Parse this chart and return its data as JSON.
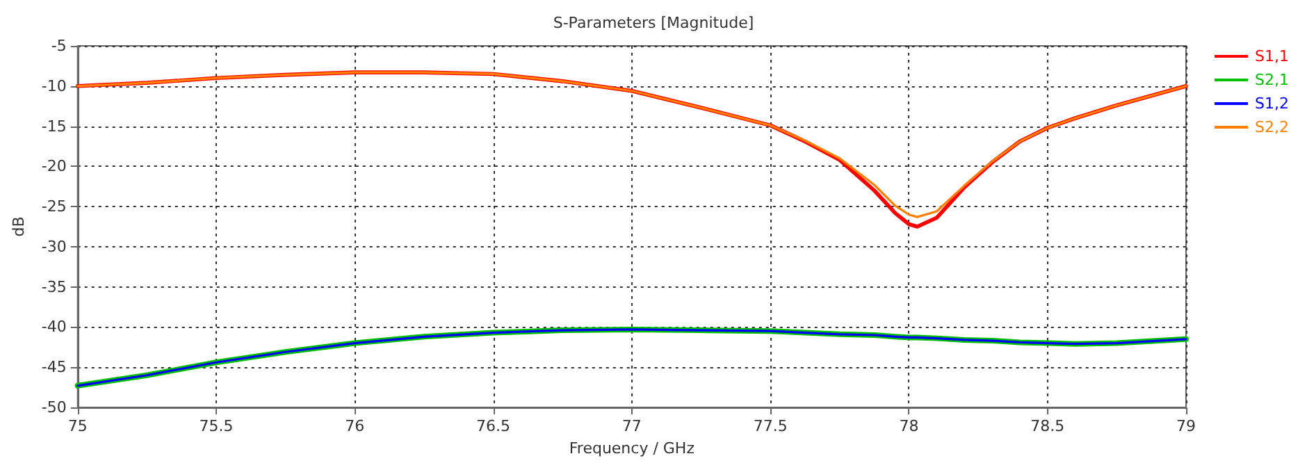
{
  "chart_data": {
    "type": "line",
    "title": "S-Parameters [Magnitude]",
    "xlabel": "Frequency / GHz",
    "ylabel": "dB",
    "x": [
      75,
      75.25,
      75.5,
      75.75,
      76,
      76.25,
      76.5,
      76.75,
      77,
      77.25,
      77.5,
      77.625,
      77.75,
      77.875,
      77.95,
      78,
      78.03,
      78.1,
      78.2,
      78.3,
      78.4,
      78.5,
      78.6,
      78.75,
      79
    ],
    "series": [
      {
        "name": "S1,1",
        "color": "#ff0000",
        "values": [
          -10.0,
          -9.6,
          -9.0,
          -8.6,
          -8.3,
          -8.3,
          -8.5,
          -9.4,
          -10.6,
          -12.7,
          -14.9,
          -16.9,
          -19.2,
          -23.0,
          -25.8,
          -27.2,
          -27.5,
          -26.4,
          -22.6,
          -19.5,
          -16.9,
          -15.2,
          -14.0,
          -12.4,
          -10.0
        ]
      },
      {
        "name": "S2,1",
        "color": "#00c000",
        "values": [
          -47.3,
          -46.0,
          -44.4,
          -43.1,
          -42.0,
          -41.2,
          -40.7,
          -40.4,
          -40.3,
          -40.4,
          -40.5,
          -40.7,
          -40.9,
          -41.0,
          -41.2,
          -41.3,
          -41.3,
          -41.4,
          -41.6,
          -41.7,
          -41.9,
          -42.0,
          -42.1,
          -42.0,
          -41.5
        ]
      },
      {
        "name": "S1,2",
        "color": "#0000ff",
        "values": [
          -47.3,
          -46.0,
          -44.4,
          -43.1,
          -42.0,
          -41.2,
          -40.7,
          -40.4,
          -40.3,
          -40.4,
          -40.5,
          -40.7,
          -40.9,
          -41.0,
          -41.2,
          -41.3,
          -41.3,
          -41.4,
          -41.6,
          -41.7,
          -41.9,
          -42.0,
          -42.1,
          -42.0,
          -41.5
        ]
      },
      {
        "name": "S2,2",
        "color": "#ff8000",
        "values": [
          -10.0,
          -9.6,
          -9.0,
          -8.6,
          -8.3,
          -8.3,
          -8.5,
          -9.4,
          -10.6,
          -12.7,
          -14.9,
          -16.8,
          -19.0,
          -22.3,
          -24.9,
          -26.0,
          -26.3,
          -25.6,
          -22.4,
          -19.4,
          -16.9,
          -15.2,
          -14.0,
          -12.4,
          -10.0
        ]
      }
    ],
    "xlim": [
      75,
      79
    ],
    "xticks": [
      75,
      75.5,
      76,
      76.5,
      77,
      77.5,
      78,
      78.5,
      79
    ],
    "ylim": [
      -50,
      -5
    ],
    "yticks": [
      -50,
      -45,
      -40,
      -35,
      -30,
      -25,
      -20,
      -15,
      -10,
      -5
    ],
    "grid": true,
    "legend": "right",
    "marker": "none",
    "line_style": "solid"
  }
}
